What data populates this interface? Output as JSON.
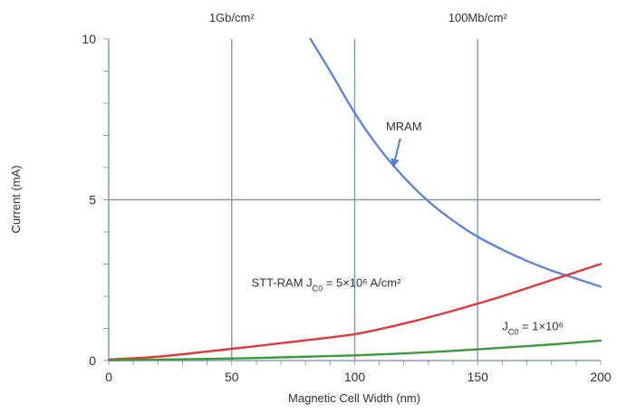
{
  "chart_data": {
    "type": "line",
    "xlabel": "Magnetic Cell Width (nm)",
    "ylabel": "Current (mA)",
    "xlim": [
      0,
      200
    ],
    "ylim": [
      0,
      10
    ],
    "x_ticks": [
      {
        "value": 0,
        "label": "0"
      },
      {
        "value": 50,
        "label": "50"
      },
      {
        "value": 100,
        "label": "100"
      },
      {
        "value": 150,
        "label": "150"
      },
      {
        "value": 200,
        "label": "200"
      }
    ],
    "y_ticks": [
      {
        "value": 0,
        "label": "0"
      },
      {
        "value": 5,
        "label": "5"
      },
      {
        "value": 10,
        "label": "10"
      }
    ],
    "top_axis_labels": [
      {
        "value": 50,
        "label": "1Gb/cm²"
      },
      {
        "value": 150,
        "label": "100Mb/cm²"
      }
    ],
    "vertical_gridlines": [
      50,
      100,
      150
    ],
    "horizontal_gridlines": [
      5
    ],
    "grid": true,
    "series": [
      {
        "name": "MRAM",
        "color": "#5b84e6",
        "x": [
          82,
          90,
          100,
          110,
          120,
          130,
          140,
          150,
          160,
          170,
          180,
          190,
          200
        ],
        "y": [
          10.0,
          9.0,
          7.7,
          6.6,
          5.7,
          4.95,
          4.35,
          3.85,
          3.45,
          3.1,
          2.8,
          2.55,
          2.3
        ]
      },
      {
        "name": "STT-RAM J_C0 = 5×10⁶ A/cm²",
        "color": "#e2373a",
        "x": [
          0,
          20,
          40,
          60,
          80,
          100,
          120,
          140,
          160,
          180,
          200
        ],
        "y": [
          0.03,
          0.12,
          0.28,
          0.45,
          0.63,
          0.82,
          1.15,
          1.55,
          2.0,
          2.5,
          3.0
        ]
      },
      {
        "name": "J_C0 = 1×10⁶",
        "color": "#3b9a3b",
        "x": [
          0,
          20,
          40,
          60,
          80,
          100,
          120,
          140,
          160,
          180,
          200
        ],
        "y": [
          0.01,
          0.03,
          0.05,
          0.08,
          0.12,
          0.16,
          0.22,
          0.3,
          0.4,
          0.5,
          0.62
        ]
      }
    ],
    "annotations": [
      {
        "text": "MRAM",
        "x": 120,
        "y": 7.3,
        "arrow_to": [
          120,
          5.9
        ]
      },
      {
        "text_main": "STT-RAM J",
        "text_sub": "C0",
        "text_rest": " = 5×10⁶ A/cm²",
        "x": 58,
        "y": 2.3
      },
      {
        "text_main": "J",
        "text_sub": "C0",
        "text_rest": " = 1×10⁶",
        "x": 160,
        "y": 0.95
      }
    ]
  }
}
